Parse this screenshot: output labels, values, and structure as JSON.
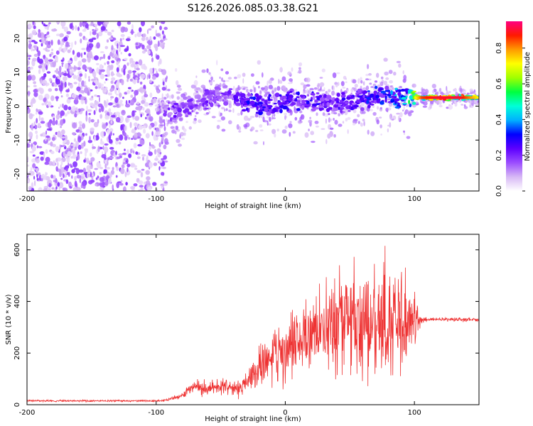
{
  "title": "S126.2026.085.03.38.G21",
  "colors": {
    "snr_line": "#ee3333",
    "palette": [
      "#ffffff",
      "#d7b8f5",
      "#9b4dff",
      "#5d00ff",
      "#0000ff",
      "#00b0ff",
      "#00ffd8",
      "#00ff40",
      "#a0ff00",
      "#ffff00",
      "#ff9a00",
      "#ff1a00",
      "#ff0080"
    ]
  },
  "chart_data": [
    {
      "type": "heatmap",
      "name": "spectrogram",
      "xlabel": "Height of straight line (km)",
      "ylabel": "Frequency (Hz)",
      "xlim": [
        -200,
        150
      ],
      "ylim": [
        -25,
        25
      ],
      "xticks": [
        "-200",
        "-100",
        "0",
        "100"
      ],
      "xtick_values": [
        -200,
        -100,
        0,
        100
      ],
      "yticks": [
        "-20",
        "-10",
        "0",
        "10",
        "20"
      ],
      "ytick_values": [
        -20,
        -10,
        0,
        10,
        20
      ],
      "colorbar": {
        "label": "Normalized spectral amplitude",
        "range": [
          0,
          0.95
        ],
        "ticks": [
          "0.0",
          "0.2",
          "0.4",
          "0.6",
          "0.8"
        ],
        "tick_values": [
          0.0,
          0.2,
          0.4,
          0.6,
          0.8
        ]
      },
      "ridge": {
        "x": [
          -95,
          -85,
          -75,
          -65,
          -55,
          -45,
          -35,
          -25,
          -15,
          -5,
          5,
          15,
          25,
          35,
          45,
          55,
          65,
          75,
          85,
          95,
          105,
          115,
          125,
          135,
          150
        ],
        "freq": [
          -1,
          -1.5,
          0,
          1,
          3,
          3,
          2,
          1,
          0,
          1,
          2,
          1.5,
          1,
          0.5,
          1,
          1.5,
          2.5,
          3,
          2.5,
          2.5,
          2.5,
          2.5,
          2.5,
          2.5,
          2.5
        ],
        "peak_amplitude": [
          0.2,
          0.25,
          0.2,
          0.22,
          0.25,
          0.22,
          0.28,
          0.35,
          0.3,
          0.3,
          0.3,
          0.3,
          0.3,
          0.25,
          0.3,
          0.28,
          0.35,
          0.35,
          0.45,
          0.55,
          0.85,
          0.9,
          0.9,
          0.9,
          0.7
        ]
      }
    },
    {
      "type": "line",
      "name": "snr",
      "xlabel": "Height of straight line (km)",
      "ylabel": "SNR (10 * v/v)",
      "xlim": [
        -200,
        150
      ],
      "ylim": [
        0,
        660
      ],
      "xticks": [
        "-200",
        "-100",
        "0",
        "100"
      ],
      "xtick_values": [
        -200,
        -100,
        0,
        100
      ],
      "yticks": [
        "0",
        "200",
        "400",
        "600"
      ],
      "ytick_values": [
        0,
        200,
        400,
        600
      ],
      "envelope": {
        "x": [
          -200,
          -100,
          -90,
          -80,
          -70,
          -60,
          -50,
          -40,
          -30,
          -20,
          -10,
          0,
          10,
          20,
          30,
          40,
          50,
          60,
          70,
          80,
          90,
          100,
          105,
          110,
          150
        ],
        "mean": [
          15,
          15,
          20,
          35,
          70,
          60,
          75,
          60,
          90,
          130,
          190,
          200,
          260,
          280,
          300,
          310,
          310,
          300,
          320,
          330,
          300,
          330,
          330,
          330,
          330
        ],
        "spread": [
          4,
          4,
          6,
          12,
          30,
          30,
          35,
          30,
          50,
          90,
          120,
          110,
          140,
          160,
          180,
          200,
          220,
          240,
          250,
          250,
          230,
          150,
          12,
          8,
          8
        ]
      }
    }
  ]
}
